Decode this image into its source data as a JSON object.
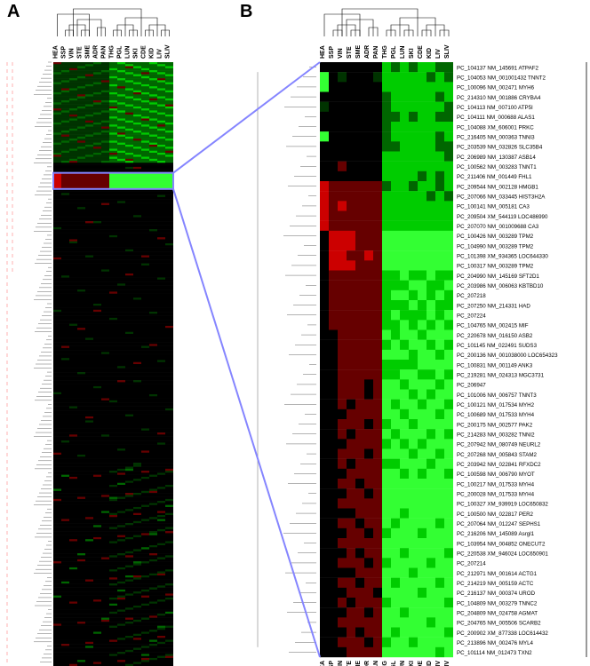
{
  "panels": {
    "A": "A",
    "B": "B"
  },
  "columns": [
    "HEA",
    "SSP",
    "VIN",
    "STE",
    "SME",
    "ADR",
    "PAN",
    "THG",
    "PGL",
    "LUN",
    "SKI",
    "CDE",
    "KID",
    "LIV",
    "SLIV"
  ],
  "col_clusters": [
    [
      0
    ],
    [
      1
    ],
    [
      2,
      3
    ],
    [
      4,
      5
    ],
    [
      6
    ],
    [
      7,
      8
    ],
    [
      9,
      10
    ],
    [
      11,
      12
    ],
    [
      13,
      14
    ]
  ],
  "colors": {
    "bg": "#000000",
    "lo": "#003300",
    "mid": "#006600",
    "hi": "#00cc00",
    "br": "#33ff33",
    "red_lo": "#330000",
    "red_mid": "#660000",
    "red_hi": "#cc0000",
    "connector": "#8585ff"
  },
  "panelA": {
    "n_rows": 300,
    "highlight_band": {
      "start": 55,
      "end": 62
    }
  },
  "panelB": {
    "rows": [
      "PC_104137 NM_145691 ATPAF2",
      "PC_104053 NM_001001432 TNNT2",
      "PC_100096 NM_002471 MYH6",
      "PC_214310 NM_001886 CRYBA4",
      "PC_104113 NM_007100 ATP5I",
      "PC_104111 NM_000688 ALAS1",
      "PC_104088 XM_606001 PRKC",
      "PC_216405 NM_000363 TNNI3",
      "PC_203539 NM_032826 SLC35B4",
      "PC_206989 NM_130387 ASB14",
      "PC_100562 NM_003283 TNNT1",
      "PC_211406 NM_001449 FHL1",
      "PC_209544 NM_002128 HMGB1",
      "PC_207066 NM_033445 HIST3H2A",
      "PC_100141 NM_005181 CA3",
      "PC_209504 XM_544119 LOC486990",
      "PC_207070 NM_001009688 CA3",
      "PC_100426 NM_003289 TPM2",
      "PC_104990 NM_003289 TPM2",
      "PC_101398 XM_934365 LOC644330",
      "PC_100317 NM_003289 TPM2",
      "PC_204990 NM_145169 SFT2D1",
      "PC_203986 NM_006063 KBTBD10",
      "PC_207218",
      "PC_207250 NM_214331 HAD",
      "PC_207224",
      "PC_104765 NM_002415 MIF",
      "PC_220678 NM_016150 ASB2",
      "PC_101145 NM_022491 SUDS3",
      "PC_200136 NM_001038000 LOC654323",
      "PC_100831 NM_001149 ANK3",
      "PC_219281 NM_024313 MGC3731",
      "PC_206947",
      "PC_101006 NM_006757 TNNT3",
      "PC_100121 NM_017534 MYH2",
      "PC_100689 NM_017533 MYH4",
      "PC_200175 NM_002577 PAK2",
      "PC_214283 NM_003282 TNNI2",
      "PC_207942 NM_080749 NEURL2",
      "PC_207268 NM_005843 STAM2",
      "PC_203942 NM_022841 RFXDC2",
      "PC_100598 NM_006790 MYOT",
      "PC_100217 NM_017533 MYH4",
      "PC_200028 NM_017533 MYH4",
      "PC_100327 XM_939919 LOC650832",
      "PC_100500 NM_022817 PER2",
      "PC_207064 NM_012247 SEPHS1",
      "PC_216206 NM_145089 Asrgl1",
      "PC_103954 NM_004852 ONECUT2",
      "PC_220538 XM_946024 LOC650901",
      "PC_207214",
      "PC_212971 NM_001614 ACTG1",
      "PC_214219 NM_005159 ACTC",
      "PC_216137 NM_000374 UROD",
      "PC_104809 NM_003279 TNNC2",
      "PC_204809 NM_024758 AGMAT",
      "PC_204765 NM_005506 SCARB2",
      "PC_200902 XM_877338 LOC614432",
      "PC_213896 NM_002476 MYL4",
      "PC_101114 NM_012473 TXN2"
    ]
  },
  "panelB_row_profile": [
    [
      0,
      0,
      0,
      0,
      0,
      0,
      0,
      3,
      2,
      3,
      2,
      3,
      3,
      2,
      2
    ],
    [
      4,
      0,
      1,
      0,
      0,
      0,
      1,
      3,
      3,
      3,
      3,
      3,
      2,
      3,
      2
    ],
    [
      4,
      0,
      0,
      0,
      0,
      0,
      0,
      3,
      3,
      3,
      3,
      3,
      3,
      3,
      3
    ],
    [
      0,
      0,
      0,
      0,
      0,
      0,
      0,
      2,
      3,
      3,
      3,
      3,
      3,
      2,
      3
    ],
    [
      1,
      0,
      0,
      0,
      0,
      0,
      0,
      2,
      3,
      3,
      3,
      3,
      3,
      3,
      2
    ],
    [
      0,
      0,
      0,
      0,
      0,
      0,
      0,
      2,
      2,
      3,
      2,
      3,
      3,
      2,
      2
    ],
    [
      0,
      0,
      0,
      0,
      0,
      0,
      0,
      2,
      3,
      3,
      3,
      3,
      3,
      3,
      3
    ],
    [
      4,
      0,
      0,
      0,
      0,
      0,
      0,
      2,
      3,
      3,
      3,
      3,
      3,
      2,
      3
    ],
    [
      0,
      0,
      0,
      0,
      0,
      0,
      0,
      2,
      2,
      3,
      3,
      3,
      3,
      2,
      2
    ],
    [
      0,
      0,
      0,
      0,
      0,
      0,
      0,
      3,
      3,
      3,
      3,
      3,
      3,
      3,
      2
    ],
    [
      0,
      0,
      -1,
      0,
      0,
      0,
      0,
      3,
      3,
      3,
      3,
      3,
      3,
      3,
      3
    ],
    [
      0,
      0,
      0,
      0,
      0,
      0,
      0,
      3,
      3,
      3,
      3,
      2,
      3,
      2,
      3
    ],
    [
      -2,
      -1,
      -1,
      -1,
      -1,
      -1,
      -1,
      2,
      3,
      3,
      2,
      3,
      3,
      2,
      3
    ],
    [
      -2,
      -1,
      -1,
      -1,
      -1,
      -1,
      -1,
      3,
      3,
      3,
      3,
      3,
      2,
      3,
      2
    ],
    [
      -2,
      -1,
      -2,
      -1,
      -1,
      -1,
      -1,
      3,
      3,
      3,
      3,
      3,
      3,
      3,
      3
    ],
    [
      -2,
      -1,
      -1,
      -1,
      -1,
      -1,
      -1,
      3,
      3,
      3,
      3,
      3,
      3,
      3,
      3
    ],
    [
      -2,
      -1,
      -1,
      -1,
      -1,
      -1,
      -1,
      3,
      3,
      3,
      3,
      3,
      3,
      3,
      3
    ],
    [
      0,
      -2,
      -2,
      -2,
      -1,
      -1,
      -1,
      4,
      4,
      4,
      4,
      4,
      4,
      4,
      4
    ],
    [
      0,
      -2,
      -2,
      -2,
      -1,
      -1,
      -1,
      4,
      4,
      4,
      4,
      4,
      4,
      4,
      4
    ],
    [
      0,
      -2,
      -2,
      -1,
      -1,
      -2,
      -1,
      4,
      4,
      4,
      4,
      4,
      4,
      4,
      4
    ],
    [
      0,
      -2,
      -2,
      -2,
      -1,
      -1,
      -1,
      4,
      4,
      4,
      4,
      4,
      4,
      4,
      4
    ],
    [
      0,
      -1,
      -1,
      -1,
      -1,
      -1,
      -1,
      3,
      3,
      4,
      3,
      3,
      4,
      3,
      3
    ],
    [
      0,
      -1,
      -1,
      -1,
      -1,
      -1,
      -1,
      3,
      3,
      3,
      4,
      4,
      3,
      3,
      4
    ],
    [
      0,
      -1,
      -1,
      -1,
      -1,
      -1,
      -1,
      3,
      4,
      4,
      3,
      4,
      3,
      4,
      3
    ],
    [
      0,
      -1,
      -1,
      -1,
      -1,
      -1,
      -1,
      3,
      3,
      3,
      4,
      3,
      4,
      3,
      3
    ],
    [
      0,
      -1,
      -1,
      -1,
      -1,
      -1,
      -1,
      3,
      4,
      3,
      3,
      3,
      4,
      3,
      4
    ],
    [
      0,
      -1,
      -1,
      -1,
      -1,
      -1,
      -1,
      3,
      3,
      4,
      3,
      4,
      3,
      4,
      3
    ],
    [
      0,
      0,
      -1,
      -1,
      -1,
      -1,
      -1,
      4,
      3,
      4,
      4,
      3,
      4,
      4,
      4
    ],
    [
      0,
      0,
      -1,
      -1,
      -1,
      -1,
      -1,
      3,
      4,
      3,
      4,
      4,
      3,
      4,
      3
    ],
    [
      0,
      0,
      -1,
      -1,
      -1,
      -1,
      -1,
      4,
      4,
      4,
      3,
      4,
      4,
      3,
      4
    ],
    [
      0,
      0,
      -1,
      -1,
      -1,
      -1,
      -1,
      3,
      3,
      3,
      3,
      4,
      4,
      4,
      4
    ],
    [
      0,
      0,
      -1,
      -1,
      -1,
      -1,
      -1,
      3,
      3,
      4,
      4,
      3,
      3,
      4,
      3
    ],
    [
      0,
      0,
      -1,
      -1,
      -1,
      0,
      -1,
      4,
      4,
      3,
      4,
      4,
      4,
      3,
      4
    ],
    [
      0,
      0,
      -1,
      -1,
      -1,
      0,
      -1,
      4,
      4,
      4,
      3,
      4,
      3,
      4,
      4
    ],
    [
      0,
      0,
      -1,
      0,
      -1,
      -1,
      -1,
      4,
      3,
      4,
      4,
      3,
      4,
      4,
      3
    ],
    [
      0,
      0,
      0,
      -1,
      -1,
      -1,
      -1,
      4,
      4,
      3,
      4,
      4,
      4,
      3,
      4
    ],
    [
      0,
      0,
      -1,
      -1,
      -1,
      0,
      -1,
      3,
      4,
      4,
      3,
      4,
      4,
      4,
      4
    ],
    [
      0,
      0,
      -1,
      0,
      -1,
      -1,
      -1,
      4,
      3,
      4,
      4,
      4,
      3,
      4,
      3
    ],
    [
      0,
      0,
      0,
      -1,
      -1,
      -1,
      -1,
      3,
      4,
      3,
      4,
      3,
      4,
      4,
      4
    ],
    [
      0,
      0,
      -1,
      -1,
      -1,
      0,
      -1,
      4,
      4,
      4,
      3,
      4,
      4,
      3,
      4
    ],
    [
      0,
      0,
      -1,
      0,
      -1,
      -1,
      -1,
      3,
      3,
      4,
      4,
      4,
      3,
      4,
      4
    ],
    [
      0,
      0,
      0,
      -1,
      -1,
      -1,
      -1,
      4,
      4,
      3,
      4,
      3,
      4,
      4,
      3
    ],
    [
      0,
      0,
      -1,
      -1,
      0,
      -1,
      -1,
      4,
      4,
      4,
      4,
      4,
      4,
      4,
      4
    ],
    [
      0,
      0,
      0,
      -1,
      -1,
      0,
      -1,
      4,
      4,
      4,
      4,
      4,
      4,
      4,
      4
    ],
    [
      0,
      0,
      -1,
      -1,
      -1,
      -1,
      -1,
      4,
      4,
      4,
      4,
      4,
      4,
      4,
      4
    ],
    [
      0,
      0,
      0,
      0,
      -1,
      -1,
      -1,
      4,
      4,
      3,
      4,
      4,
      4,
      4,
      4
    ],
    [
      0,
      0,
      -1,
      -1,
      0,
      -1,
      -1,
      4,
      3,
      4,
      4,
      4,
      4,
      3,
      4
    ],
    [
      0,
      0,
      0,
      -1,
      -1,
      0,
      -1,
      3,
      4,
      4,
      4,
      3,
      4,
      4,
      4
    ],
    [
      0,
      0,
      -1,
      -1,
      -1,
      -1,
      -1,
      4,
      4,
      4,
      4,
      4,
      4,
      4,
      4
    ],
    [
      0,
      0,
      0,
      -1,
      0,
      -1,
      -1,
      4,
      4,
      3,
      4,
      4,
      4,
      4,
      3
    ],
    [
      0,
      0,
      -1,
      -1,
      -1,
      0,
      -1,
      3,
      4,
      4,
      4,
      4,
      3,
      4,
      4
    ],
    [
      0,
      0,
      0,
      0,
      -1,
      -1,
      -1,
      4,
      4,
      4,
      3,
      4,
      4,
      4,
      4
    ],
    [
      0,
      0,
      -1,
      -1,
      0,
      -1,
      -1,
      4,
      3,
      4,
      4,
      4,
      4,
      3,
      4
    ],
    [
      0,
      0,
      0,
      -1,
      -1,
      -1,
      0,
      4,
      4,
      4,
      4,
      3,
      4,
      4,
      4
    ],
    [
      0,
      0,
      -1,
      0,
      -1,
      -1,
      -1,
      3,
      4,
      4,
      4,
      4,
      4,
      4,
      3
    ],
    [
      0,
      0,
      0,
      -1,
      -1,
      0,
      -1,
      4,
      4,
      3,
      4,
      4,
      4,
      4,
      4
    ],
    [
      0,
      0,
      -1,
      -1,
      -1,
      -1,
      -1,
      4,
      4,
      4,
      4,
      4,
      3,
      4,
      4
    ],
    [
      0,
      0,
      0,
      -1,
      0,
      -1,
      -1,
      4,
      3,
      4,
      4,
      4,
      4,
      4,
      3
    ],
    [
      0,
      0,
      -1,
      -1,
      -1,
      0,
      -1,
      3,
      4,
      4,
      3,
      4,
      4,
      4,
      4
    ],
    [
      0,
      0,
      0,
      -1,
      -1,
      -1,
      -1,
      4,
      4,
      4,
      4,
      4,
      4,
      3,
      4
    ]
  ]
}
